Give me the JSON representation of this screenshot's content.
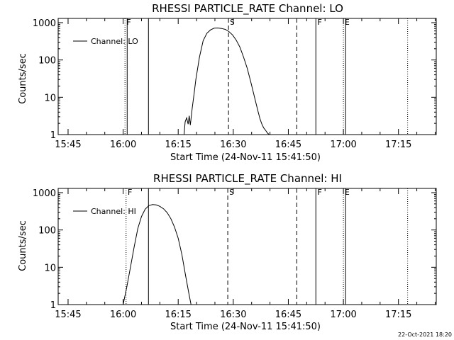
{
  "chart_data": [
    {
      "type": "line",
      "title": "RHESSI PARTICLE_RATE Channel: LO",
      "xlabel": "Start Time (24-Nov-11 15:41:50)",
      "ylabel": "Counts/sec",
      "yscale": "log",
      "ylim": [
        1,
        1000
      ],
      "yticks": [
        1,
        10,
        100,
        1000
      ],
      "ytick_labels": [
        "1",
        "10",
        "100",
        "1000"
      ],
      "xlim_minutes": [
        15.7,
        96.5
      ],
      "xtick_labels": [
        "15:45",
        "16:00",
        "16:15",
        "16:30",
        "16:45",
        "17:00",
        "17:15"
      ],
      "xticks_minutes": [
        15,
        30,
        45,
        60,
        75,
        90
      ],
      "xtick_label_minutes": [
        45,
        60,
        75,
        90,
        105,
        120,
        135
      ],
      "legend": "Channel: LO",
      "series": [
        {
          "name": "Channel: LO",
          "x": [
            52.8,
            53.1,
            53.5,
            53.9,
            54.2,
            54.5,
            55.0,
            55.5,
            56.0,
            57.0,
            58.0,
            59.0,
            60.0,
            61.0,
            62.0,
            63.0,
            64.0,
            65.0,
            66.0,
            67.0,
            68.0,
            69.0,
            70.0,
            71.0,
            72.0,
            73.0,
            73.5,
            74.0,
            74.5,
            75.0,
            75.5,
            76.0
          ],
          "y": [
            1,
            2.2,
            2.8,
            1.9,
            3.2,
            1.8,
            5,
            12,
            30,
            120,
            330,
            520,
            640,
            710,
            720,
            700,
            660,
            580,
            470,
            340,
            220,
            120,
            60,
            25,
            10,
            4,
            2.6,
            1.9,
            1.5,
            1.3,
            1.1,
            1
          ]
        }
      ],
      "vlines": [
        {
          "minute": 37.7,
          "style": "dotted",
          "label": "F"
        },
        {
          "minute": 38.2,
          "style": "solid",
          "label": ""
        },
        {
          "minute": 44.7,
          "style": "solid",
          "label": ""
        },
        {
          "minute": 65.0,
          "style": "dashed",
          "label": "S"
        },
        {
          "minute": 64.5,
          "style": "none",
          "label": ""
        },
        {
          "minute": 83.5,
          "style": "dashed",
          "label": ""
        },
        {
          "minute": 88.8,
          "style": "solid",
          "label": "F"
        },
        {
          "minute": 96.3,
          "style": "dotted",
          "label": "E"
        },
        {
          "minute": 96.8,
          "style": "solid",
          "label": ""
        },
        {
          "minute": 114.3,
          "style": "dotted",
          "label": ""
        }
      ]
    },
    {
      "type": "line",
      "title": "RHESSI PARTICLE_RATE Channel: HI",
      "xlabel": "Start Time (24-Nov-11 15:41:50)",
      "ylabel": "Counts/sec",
      "yscale": "log",
      "ylim": [
        1,
        1000
      ],
      "yticks": [
        1,
        10,
        100,
        1000
      ],
      "ytick_labels": [
        "1",
        "10",
        "100",
        "1000"
      ],
      "xtick_labels": [
        "15:45",
        "16:00",
        "16:15",
        "16:30",
        "16:45",
        "17:00",
        "17:15"
      ],
      "xtick_label_minutes": [
        45,
        60,
        75,
        90,
        105,
        120,
        135
      ],
      "legend": "Channel: HI",
      "series": [
        {
          "name": "Channel: HI",
          "x": [
            60.0,
            61.0,
            62.0,
            63.0,
            64.0,
            65.0,
            66.0,
            67.0,
            68.0,
            69.0,
            70.0,
            71.0,
            72.0,
            73.0,
            74.0,
            75.0,
            76.0,
            77.0,
            78.0,
            78.5
          ],
          "y": [
            1,
            3,
            10,
            35,
            110,
            230,
            360,
            450,
            480,
            470,
            430,
            370,
            290,
            200,
            120,
            60,
            22,
            6,
            1.8,
            1
          ]
        }
      ],
      "vlines": [
        {
          "minute": 60.8,
          "style": "dotted",
          "label": "F"
        },
        {
          "minute": 66.9,
          "style": "solid",
          "label": ""
        },
        {
          "minute": 88.5,
          "style": "dashed",
          "label": "S"
        },
        {
          "minute": 107.3,
          "style": "dashed",
          "label": ""
        },
        {
          "minute": 112.5,
          "style": "solid",
          "label": "F"
        },
        {
          "minute": 120.0,
          "style": "dotted",
          "label": "E"
        },
        {
          "minute": 120.6,
          "style": "solid",
          "label": ""
        },
        {
          "minute": 137.5,
          "style": "dotted",
          "label": ""
        }
      ]
    }
  ],
  "footer": "22-Oct-2021 18:20"
}
